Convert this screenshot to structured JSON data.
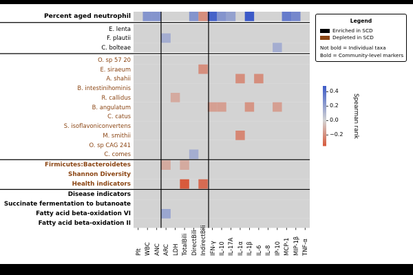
{
  "chart_data": {
    "type": "heatmap",
    "title": "",
    "columns": [
      "Plt",
      "WBC",
      "ANC",
      "ARC",
      "LDH",
      "TotalBili",
      "DirectBili",
      "IndirectBili",
      "IFN-γ",
      "IL-10",
      "IL-17A",
      "IL-1α",
      "IL-1β",
      "IL-6",
      "IL-8",
      "IP-10",
      "MCP-1",
      "MIP-1β",
      "TNF-α"
    ],
    "rows": [
      {
        "label": "Percent aged neutrophil",
        "group": "top",
        "style": "bold",
        "color": "#000000"
      },
      {
        "label": "E. lenta",
        "group": "taxa",
        "style": "normal",
        "color": "#000000"
      },
      {
        "label": "F. plautii",
        "group": "taxa",
        "style": "normal",
        "color": "#000000"
      },
      {
        "label": "C. bolteae",
        "group": "taxa",
        "style": "normal",
        "color": "#000000"
      },
      {
        "label": "O. sp 57 20",
        "group": "taxa",
        "style": "normal",
        "color": "#8B4513"
      },
      {
        "label": "E. siraeum",
        "group": "taxa",
        "style": "normal",
        "color": "#8B4513"
      },
      {
        "label": "A. shahii",
        "group": "taxa",
        "style": "normal",
        "color": "#8B4513"
      },
      {
        "label": "B. intestinihominis",
        "group": "taxa",
        "style": "normal",
        "color": "#8B4513"
      },
      {
        "label": "R. callidus",
        "group": "taxa",
        "style": "normal",
        "color": "#8B4513"
      },
      {
        "label": "B. angulatum",
        "group": "taxa",
        "style": "normal",
        "color": "#8B4513"
      },
      {
        "label": "C. catus",
        "group": "taxa",
        "style": "normal",
        "color": "#8B4513"
      },
      {
        "label": "S. isoflavoniconvertens",
        "group": "taxa",
        "style": "normal",
        "color": "#8B4513"
      },
      {
        "label": "M. smithii",
        "group": "taxa",
        "style": "normal",
        "color": "#8B4513"
      },
      {
        "label": "O. sp CAG 241",
        "group": "taxa",
        "style": "normal",
        "color": "#8B4513"
      },
      {
        "label": "C. comes",
        "group": "taxa",
        "style": "normal",
        "color": "#8B4513"
      },
      {
        "label": "Firmicutes:Bacteroidetes",
        "group": "depleted-markers",
        "style": "bold",
        "color": "#8B4513"
      },
      {
        "label": "Shannon Diversity",
        "group": "depleted-markers",
        "style": "bold",
        "color": "#8B4513"
      },
      {
        "label": "Health indicators",
        "group": "depleted-markers",
        "style": "bold",
        "color": "#8B4513"
      },
      {
        "label": "Disease indicators",
        "group": "enriched-markers",
        "style": "bold",
        "color": "#000000"
      },
      {
        "label": "Succinate fermentation to butanoate",
        "group": "enriched-markers",
        "style": "bold",
        "color": "#000000"
      },
      {
        "label": "Fatty acid beta-oxidation VI",
        "group": "enriched-markers",
        "style": "bold",
        "color": "#000000"
      },
      {
        "label": "Fatty acid beta-oxidation II",
        "group": "enriched-markers",
        "style": "bold",
        "color": "#000000"
      }
    ],
    "cells": [
      {
        "row": 0,
        "col": 1,
        "value": 0.25
      },
      {
        "row": 0,
        "col": 2,
        "value": 0.25
      },
      {
        "row": 0,
        "col": 6,
        "value": 0.25
      },
      {
        "row": 0,
        "col": 7,
        "value": -0.2
      },
      {
        "row": 0,
        "col": 8,
        "value": 0.45
      },
      {
        "row": 0,
        "col": 9,
        "value": 0.25
      },
      {
        "row": 0,
        "col": 10,
        "value": 0.2
      },
      {
        "row": 0,
        "col": 12,
        "value": 0.48
      },
      {
        "row": 0,
        "col": 16,
        "value": 0.35
      },
      {
        "row": 0,
        "col": 17,
        "value": 0.3
      },
      {
        "row": 2,
        "col": 3,
        "value": 0.15
      },
      {
        "row": 3,
        "col": 15,
        "value": 0.15
      },
      {
        "row": 5,
        "col": 7,
        "value": -0.2
      },
      {
        "row": 6,
        "col": 11,
        "value": -0.2
      },
      {
        "row": 6,
        "col": 13,
        "value": -0.2
      },
      {
        "row": 8,
        "col": 4,
        "value": -0.12
      },
      {
        "row": 9,
        "col": 8,
        "value": -0.15
      },
      {
        "row": 9,
        "col": 9,
        "value": -0.15
      },
      {
        "row": 9,
        "col": 12,
        "value": -0.18
      },
      {
        "row": 9,
        "col": 15,
        "value": -0.15
      },
      {
        "row": 12,
        "col": 11,
        "value": -0.22
      },
      {
        "row": 14,
        "col": 6,
        "value": 0.15
      },
      {
        "row": 15,
        "col": 3,
        "value": -0.12
      },
      {
        "row": 15,
        "col": 5,
        "value": -0.12
      },
      {
        "row": 17,
        "col": 5,
        "value": -0.35
      },
      {
        "row": 17,
        "col": 7,
        "value": -0.3
      },
      {
        "row": 20,
        "col": 3,
        "value": 0.18
      }
    ],
    "colorbar": {
      "label": "Spearman rank",
      "ticks": [
        0.4,
        0.2,
        0.0,
        -0.2
      ],
      "tick_labels": [
        "0.4",
        "0.2",
        "0.0",
        "−0.2"
      ],
      "range": [
        -0.35,
        0.48
      ]
    },
    "nan_color": "#d3d3d3",
    "legend": {
      "title": "Legend",
      "entries": [
        {
          "label": "Enriched in SCD",
          "color": "#000000"
        },
        {
          "label": "Depleted in SCD",
          "color": "#8B4513"
        }
      ],
      "notes": [
        "Not bold = Individual taxa",
        "Bold = Community-level markers"
      ]
    }
  }
}
